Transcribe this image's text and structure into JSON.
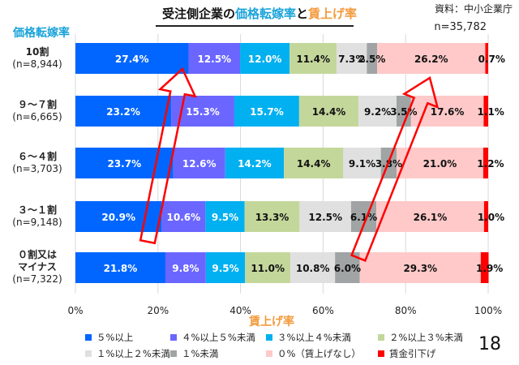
{
  "title": {
    "part1": "受注側企業の",
    "part2": "価格転嫁率",
    "part3": "と",
    "part4": "賃上げ率"
  },
  "source": "資料：中小企業庁",
  "n_total": "n=35,782",
  "page_number": "18",
  "chart_data": {
    "type": "bar",
    "orientation": "horizontal-stacked-100",
    "ylabel": "価格転嫁率",
    "xlabel": "賃上げ率",
    "xlim": [
      0,
      100
    ],
    "xticks": [
      "0%",
      "20%",
      "40%",
      "60%",
      "80%",
      "100%"
    ],
    "grid": true,
    "legend_position": "bottom",
    "categories": [
      {
        "label": "10割",
        "n": "(n=8,944)"
      },
      {
        "label": "９～７割",
        "n": "(n=6,665)"
      },
      {
        "label": "６～４割",
        "n": "(n=3,703)"
      },
      {
        "label": "３～１割",
        "n": "(n=9,148)"
      },
      {
        "label": "０割又は",
        "label2": "マイナス",
        "n": "(n=7,322)"
      }
    ],
    "series": [
      {
        "name": "５%以上",
        "color": "#0066ff",
        "text": "#ffffff",
        "values": [
          27.4,
          23.2,
          23.7,
          20.9,
          21.8
        ]
      },
      {
        "name": "４%以上５%未満",
        "color": "#6b66ff",
        "text": "#ffffff",
        "values": [
          12.5,
          15.3,
          12.6,
          10.6,
          9.8
        ]
      },
      {
        "name": "３%以上４%未満",
        "color": "#00b0f0",
        "text": "#ffffff",
        "values": [
          12.0,
          15.7,
          14.2,
          9.5,
          9.5
        ]
      },
      {
        "name": "２%以上３%未満",
        "color": "#c4d79b",
        "text": "#111111",
        "values": [
          11.4,
          14.4,
          14.4,
          13.3,
          11.0
        ]
      },
      {
        "name": "１%以上２%未満",
        "color": "#e0e0e0",
        "text": "#111111",
        "values": [
          7.3,
          9.2,
          9.1,
          12.5,
          10.8
        ]
      },
      {
        "name": "１%未満",
        "color": "#a0a4a4",
        "text": "#111111",
        "values": [
          2.5,
          3.5,
          3.8,
          6.1,
          6.0
        ]
      },
      {
        "name": "０%（賃上げなし）",
        "color": "#ffc9c9",
        "text": "#111111",
        "values": [
          26.2,
          17.6,
          21.0,
          26.1,
          29.3
        ]
      },
      {
        "name": "賃金引下げ",
        "color": "#ff0000",
        "text": "#111111",
        "values": [
          0.7,
          1.1,
          1.2,
          1.0,
          1.9
        ]
      }
    ]
  }
}
